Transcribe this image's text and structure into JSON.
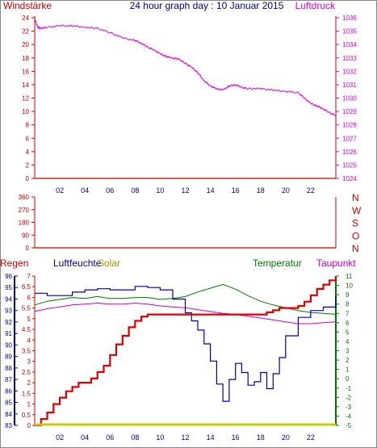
{
  "title": "24 hour graph day : 10 Januar 2015",
  "colors": {
    "axis_red": "#cc0000",
    "pressure": "#e000e0",
    "wind_dir_label": "#cc0000",
    "humidity": "#0000aa",
    "solar": "#cccc00",
    "temperature": "#007700",
    "dewpoint": "#cc00cc",
    "rain": "#dd0000",
    "blue_title": "#000099"
  },
  "hour_ticks": [
    "02",
    "04",
    "06",
    "08",
    "10",
    "12",
    "14",
    "16",
    "18",
    "20",
    "22"
  ],
  "chart_data": [
    {
      "type": "line",
      "title": "24 hour graph day : 10 Januar 2015",
      "left_label": "Windstärke",
      "right_label": "Luftdruck",
      "y_left_ticks": [
        "24",
        "22",
        "20",
        "18",
        "16",
        "14",
        "12",
        "10",
        "8",
        "6",
        "4",
        "2",
        "0"
      ],
      "y_right_ticks": [
        "1036",
        "1035",
        "1034",
        "1033",
        "1032",
        "1031",
        "1030",
        "1029",
        "1028",
        "1027",
        "1026",
        "1025",
        "1024"
      ],
      "ylim_left": [
        0,
        24
      ],
      "ylim_right": [
        1024,
        1036
      ],
      "xlim": [
        0,
        24
      ],
      "series": [
        {
          "name": "Windstärke",
          "x": [
            0,
            24
          ],
          "y": [
            0,
            0
          ]
        },
        {
          "name": "Luftdruck",
          "x": [
            0,
            0.25,
            0.5,
            1,
            2,
            3,
            4,
            5,
            6,
            7,
            8,
            8.5,
            9,
            9.5,
            10,
            10.5,
            11,
            11.5,
            12,
            12.5,
            13,
            13.5,
            14,
            14.5,
            15,
            15.5,
            16,
            16.5,
            17,
            18,
            19,
            20,
            21,
            21.5,
            22,
            22.5,
            23,
            23.5,
            24
          ],
          "y": [
            1035.9,
            1035.3,
            1035.2,
            1035.3,
            1035.4,
            1035.4,
            1035.3,
            1035.2,
            1034.9,
            1034.5,
            1034.3,
            1034.1,
            1033.8,
            1033.6,
            1033.3,
            1033.1,
            1033.0,
            1032.9,
            1032.6,
            1032.3,
            1031.9,
            1031.3,
            1030.9,
            1030.7,
            1030.6,
            1030.9,
            1031.0,
            1030.8,
            1030.7,
            1030.7,
            1030.6,
            1030.5,
            1030.4,
            1030.0,
            1029.6,
            1029.4,
            1029.2,
            1028.9,
            1028.7
          ]
        }
      ]
    },
    {
      "type": "scatter",
      "left_ticks": [
        "360",
        "270",
        "180",
        "90",
        "0"
      ],
      "ylim": [
        0,
        360
      ],
      "direction_labels": [
        "N",
        "W",
        "S",
        "O",
        "N"
      ],
      "series": [
        {
          "x": [
            0,
            24
          ],
          "y": [
            0,
            0
          ]
        }
      ]
    },
    {
      "type": "line",
      "legend": [
        "Regen",
        "Luftfeuchte",
        "Solar",
        "Temperatur",
        "Taupunkt"
      ],
      "humidity_ticks": [
        "96",
        "95",
        "94",
        "93",
        "92",
        "91",
        "90",
        "89",
        "88",
        "87",
        "86",
        "85",
        "84",
        "83"
      ],
      "rain_ticks": [
        "7",
        "6.5",
        "6",
        "5.5",
        "5",
        "4.5",
        "4",
        "3.5",
        "3",
        "2.5",
        "2",
        "1.5",
        "1",
        "0.5",
        "0"
      ],
      "temp_ticks": [
        "11",
        "10",
        "9",
        "8",
        "7",
        "6",
        "5",
        "4",
        "3",
        "2",
        "1",
        "0",
        "-1",
        "-2",
        "-3",
        "-4",
        "-5"
      ],
      "ylim_humidity": [
        83,
        96
      ],
      "ylim_rain": [
        0,
        7
      ],
      "ylim_temp": [
        -5,
        11
      ],
      "series": [
        {
          "name": "Regen",
          "x": [
            0,
            0.5,
            1,
            1.5,
            2,
            2.5,
            3,
            3.5,
            4,
            4.5,
            5,
            5.5,
            6,
            6.5,
            7,
            7.5,
            8,
            8.5,
            9,
            10,
            12,
            14,
            16,
            18,
            18.5,
            19,
            19.5,
            20,
            21,
            21.5,
            22,
            22.5,
            23,
            23.5,
            24
          ],
          "y": [
            0,
            0.3,
            0.6,
            1.0,
            1.3,
            1.6,
            1.8,
            2.0,
            2.0,
            2.2,
            2.5,
            2.8,
            3.3,
            3.8,
            4.2,
            4.6,
            4.9,
            5.1,
            5.2,
            5.2,
            5.2,
            5.2,
            5.2,
            5.2,
            5.3,
            5.4,
            5.5,
            5.5,
            5.6,
            5.8,
            6.1,
            6.4,
            6.6,
            6.8,
            7.0
          ]
        },
        {
          "name": "Luftfeuchte",
          "x": [
            0,
            1,
            2,
            3,
            4,
            5,
            6,
            7,
            8,
            9,
            10,
            11,
            12,
            12.5,
            13,
            13.5,
            14,
            14.5,
            15,
            15.5,
            16,
            16.5,
            17,
            17.5,
            18,
            18.5,
            19,
            19.5,
            20,
            21,
            22,
            23,
            24
          ],
          "y": [
            94.5,
            94.3,
            94.3,
            94.6,
            94.8,
            94.9,
            94.8,
            94.8,
            95.1,
            95.0,
            94.8,
            94.0,
            92.8,
            92.1,
            91.3,
            90.1,
            88.6,
            86.6,
            85.1,
            87.0,
            88.4,
            87.6,
            86.5,
            86.8,
            87.6,
            86.2,
            87.5,
            88.9,
            90.8,
            92.4,
            93.0,
            93.3,
            94.3
          ]
        },
        {
          "name": "Solar",
          "x": [
            0,
            24
          ],
          "y": [
            0,
            0
          ]
        },
        {
          "name": "Temperatur",
          "x": [
            0,
            1,
            2,
            3,
            4,
            5,
            6,
            7,
            8,
            9,
            10,
            11,
            12,
            13,
            14,
            15,
            16,
            17,
            18,
            19,
            20,
            21,
            22,
            23,
            24
          ],
          "y": [
            7.9,
            8.3,
            8.5,
            8.7,
            8.6,
            8.8,
            8.6,
            8.6,
            8.7,
            8.7,
            8.5,
            8.6,
            8.8,
            9.3,
            9.7,
            10.1,
            9.6,
            8.9,
            8.3,
            7.9,
            7.6,
            7.3,
            7.1,
            7.0,
            6.9
          ]
        },
        {
          "name": "Taupunkt",
          "x": [
            0,
            1,
            2,
            3,
            4,
            5,
            6,
            7,
            8,
            9,
            10,
            11,
            12,
            13,
            14,
            15,
            16,
            17,
            18,
            19,
            20,
            21,
            22,
            23,
            24
          ],
          "y": [
            7.2,
            7.5,
            7.7,
            7.9,
            8.0,
            8.1,
            8.0,
            8.0,
            8.1,
            8.0,
            7.8,
            7.7,
            7.6,
            7.4,
            7.2,
            7.0,
            6.9,
            6.7,
            6.5,
            6.3,
            6.1,
            5.9,
            5.9,
            6.0,
            6.1
          ]
        }
      ]
    }
  ]
}
